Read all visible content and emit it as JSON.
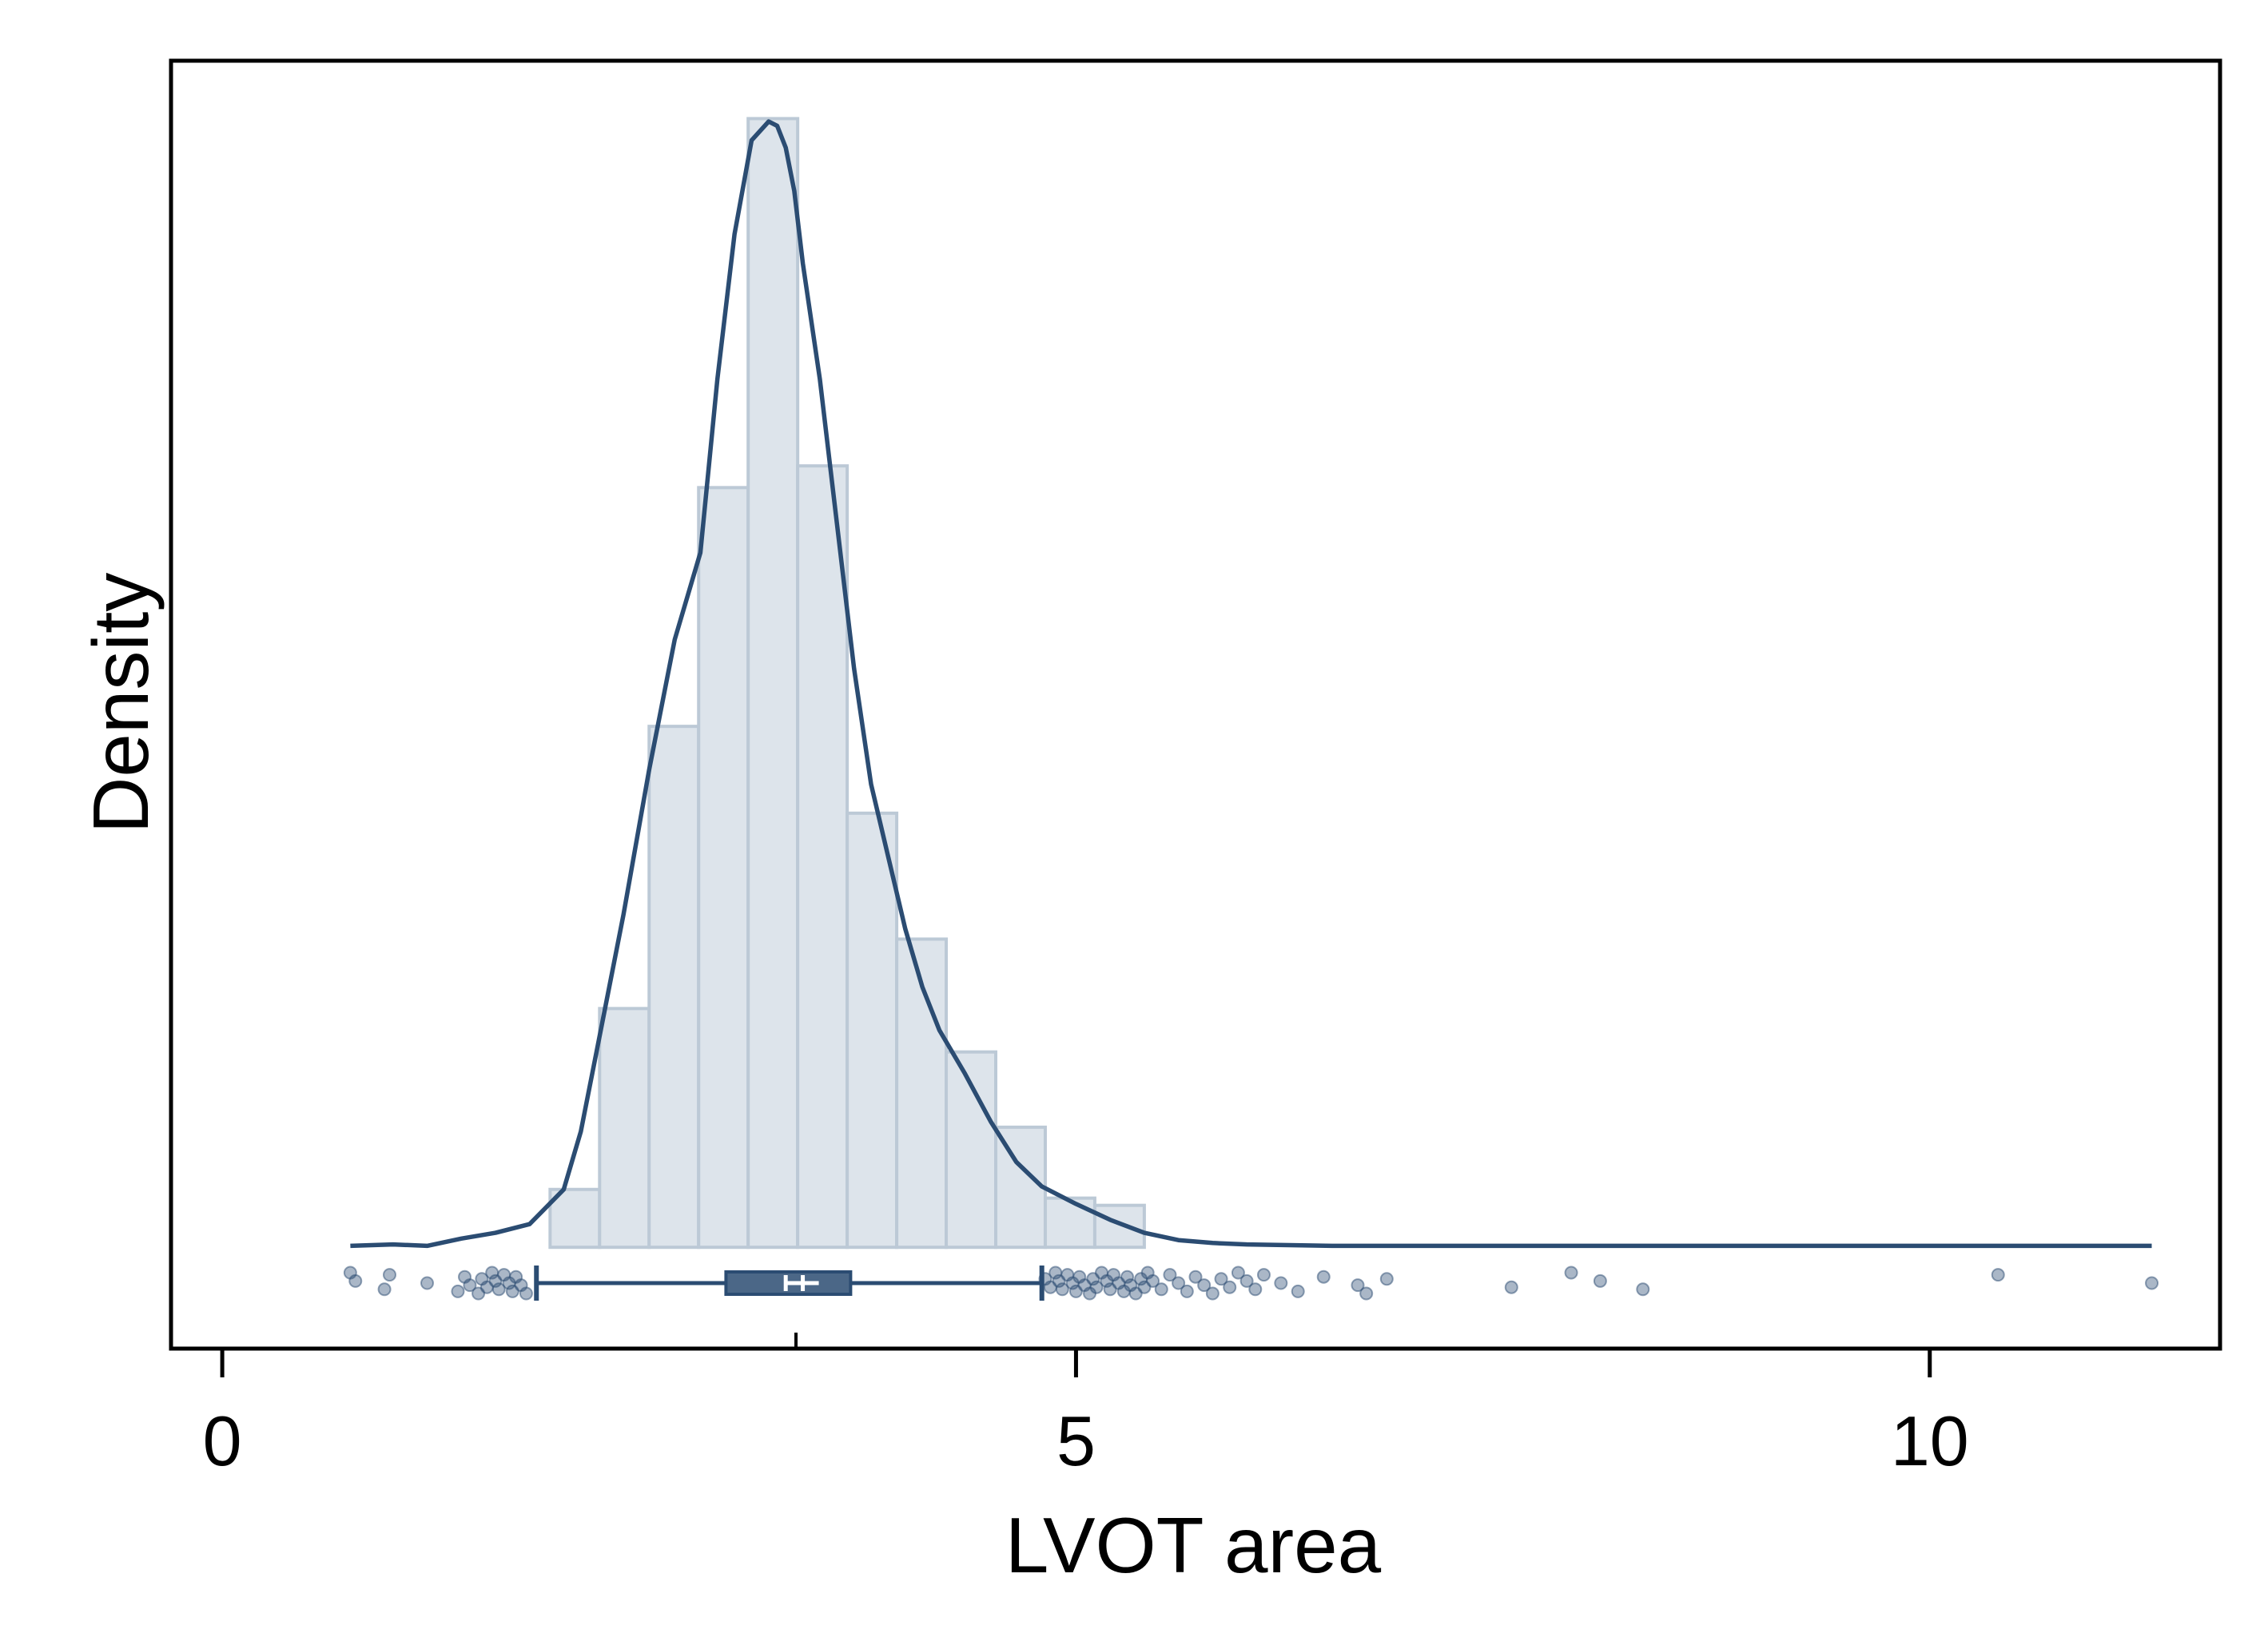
{
  "colors": {
    "accent": "#2b4c72",
    "bar_fill": "#dde4eb",
    "bar_stroke": "#bcc9d6",
    "point": "#2b4c72",
    "axis": "#000000"
  },
  "chart_data": {
    "type": "histogram",
    "xlabel": "LVOT area",
    "ylabel": "Density",
    "xlim": [
      -0.3,
      11.7
    ],
    "ylim": [
      -0.07,
      0.82
    ],
    "x_ticks": [
      0,
      5,
      10
    ],
    "x_tick_labels": [
      "0",
      "5",
      "10"
    ],
    "x_minor_tick": 3.36,
    "y_ticks_shown": false,
    "grid": false,
    "legend": "none",
    "histogram": {
      "bin_edges": [
        1.92,
        2.21,
        2.5,
        2.79,
        3.08,
        3.37,
        3.66,
        3.95,
        4.24,
        4.53,
        4.82,
        5.11,
        5.4,
        5.69
      ],
      "densities": [
        0.04,
        0.165,
        0.36,
        0.525,
        0.78,
        0.54,
        0.3,
        0.213,
        0.135,
        0.083,
        0.034,
        0.029,
        0.0
      ]
    },
    "density_curve": {
      "x": [
        0.75,
        1.0,
        1.2,
        1.4,
        1.6,
        1.8,
        2.0,
        2.1,
        2.2,
        2.35,
        2.5,
        2.65,
        2.8,
        2.9,
        3.0,
        3.1,
        3.2,
        3.25,
        3.3,
        3.35,
        3.4,
        3.5,
        3.6,
        3.7,
        3.8,
        3.9,
        4.0,
        4.1,
        4.2,
        4.35,
        4.5,
        4.65,
        4.8,
        5.0,
        5.2,
        5.4,
        5.6,
        5.8,
        6.0,
        6.5,
        7.0,
        8.0,
        9.0,
        10.0,
        11.3
      ],
      "y": [
        0.001,
        0.002,
        0.001,
        0.006,
        0.01,
        0.016,
        0.04,
        0.08,
        0.14,
        0.23,
        0.33,
        0.42,
        0.48,
        0.6,
        0.7,
        0.765,
        0.778,
        0.775,
        0.76,
        0.73,
        0.68,
        0.6,
        0.5,
        0.4,
        0.32,
        0.27,
        0.22,
        0.18,
        0.15,
        0.12,
        0.087,
        0.059,
        0.042,
        0.03,
        0.019,
        0.01,
        0.005,
        0.003,
        0.002,
        0.001,
        0.001,
        0.001,
        0.001,
        0.001,
        0.001
      ]
    },
    "box_plot": {
      "whisker_low": 1.84,
      "q1": 2.95,
      "median": 3.3,
      "mean": 3.4,
      "q3": 3.68,
      "whisker_high": 4.8
    },
    "outliers_low": [
      0.75,
      0.78,
      0.95,
      0.98,
      1.2,
      1.38,
      1.42,
      1.45,
      1.5,
      1.52,
      1.55,
      1.58,
      1.6,
      1.62,
      1.65,
      1.68,
      1.7,
      1.72,
      1.75,
      1.78
    ],
    "outliers_high": [
      4.82,
      4.85,
      4.88,
      4.9,
      4.92,
      4.95,
      4.98,
      5.0,
      5.02,
      5.05,
      5.08,
      5.1,
      5.12,
      5.15,
      5.18,
      5.2,
      5.22,
      5.25,
      5.28,
      5.3,
      5.32,
      5.35,
      5.38,
      5.4,
      5.42,
      5.45,
      5.5,
      5.55,
      5.6,
      5.65,
      5.7,
      5.75,
      5.8,
      5.85,
      5.9,
      5.95,
      6.0,
      6.05,
      6.1,
      6.2,
      6.3,
      6.45,
      6.65,
      6.7,
      6.82,
      7.55,
      7.9,
      8.07,
      8.32,
      10.4,
      11.3
    ]
  }
}
